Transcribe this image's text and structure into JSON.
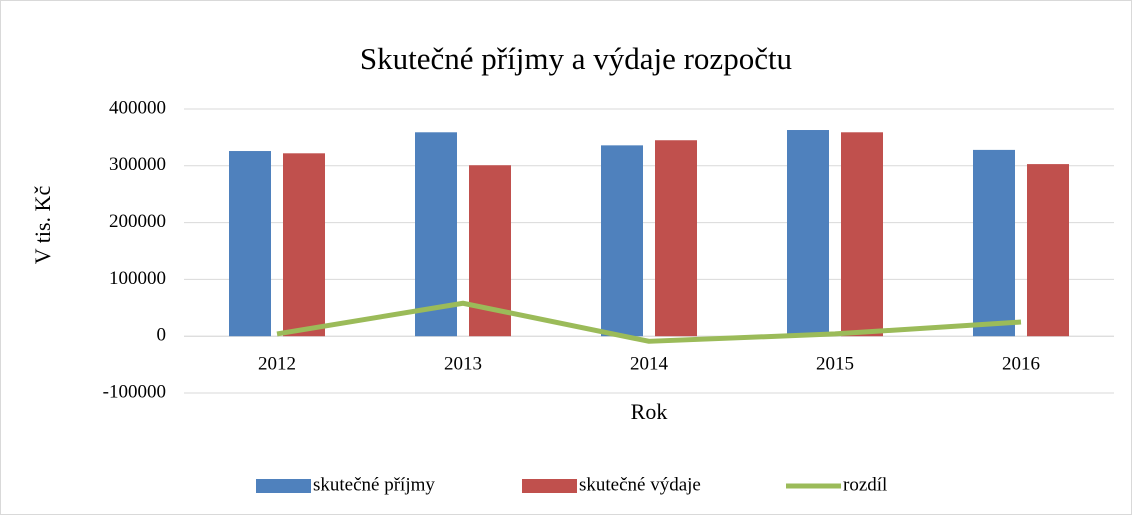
{
  "chart_data": {
    "type": "bar",
    "title": "Skutečné příjmy a výdaje rozpočtu",
    "x_label": "Rok",
    "y_label": "V tis. Kč",
    "categories": [
      "2012",
      "2013",
      "2014",
      "2015",
      "2016"
    ],
    "series": [
      {
        "name": "skutečné příjmy",
        "color": "#4f81bd",
        "type": "bar",
        "values": [
          326000,
          359000,
          336000,
          363000,
          328000
        ]
      },
      {
        "name": "skutečné výdaje",
        "color": "#c0504d",
        "type": "bar",
        "values": [
          322000,
          301000,
          345000,
          359000,
          303000
        ]
      },
      {
        "name": "rozdíl",
        "color": "#9bbb59",
        "type": "line",
        "values": [
          4000,
          58000,
          -9000,
          4000,
          25000
        ]
      }
    ],
    "ylim": [
      -100000,
      400000
    ],
    "yticks": [
      -100000,
      0,
      100000,
      200000,
      300000,
      400000
    ],
    "grid": true,
    "legend": "bottom"
  }
}
